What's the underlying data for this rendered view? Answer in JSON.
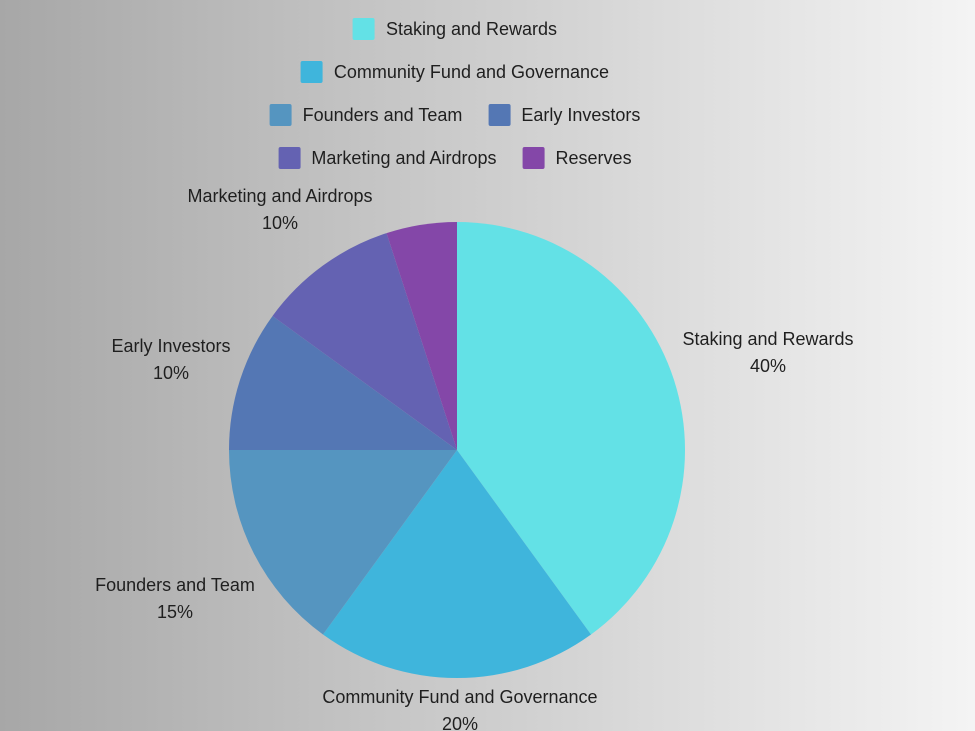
{
  "chart_data": {
    "type": "pie",
    "categories": [
      "Staking and Rewards",
      "Community Fund and Governance",
      "Founders and Team",
      "Early Investors",
      "Marketing and Airdrops",
      "Reserves"
    ],
    "values": [
      40,
      20,
      15,
      10,
      10,
      5
    ],
    "colors": [
      "#63E1E6",
      "#3FB5DC",
      "#5595C0",
      "#5477B4",
      "#6462B2",
      "#8447A8"
    ],
    "start_angle_deg": -90,
    "direction": "clockwise",
    "legend_position": "top-center",
    "title": "",
    "background": {
      "type": "linear-gradient",
      "angle": "to-right",
      "from": "#A7A7A7",
      "to": "#F4F4F4"
    },
    "outer_labels": [
      {
        "name": "Staking and Rewards",
        "pct": "40%"
      },
      {
        "name": "Community Fund and Governance",
        "pct": "20%"
      },
      {
        "name": "Founders and Team",
        "pct": "15%"
      },
      {
        "name": "Early Investors",
        "pct": "10%"
      },
      {
        "name": "Marketing and Airdrops",
        "pct": "10%"
      }
    ]
  }
}
